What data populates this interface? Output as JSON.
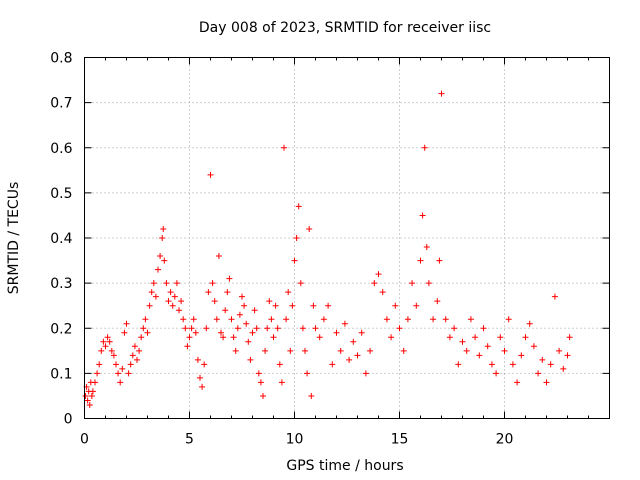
{
  "chart_data": {
    "type": "scatter",
    "title": "Day 008 of 2023, SRMTID for receiver iisc",
    "xlabel": "GPS time / hours",
    "ylabel": "SRMTID / TECUs",
    "xlim": [
      0,
      25
    ],
    "ylim": [
      0,
      0.8
    ],
    "xticks": [
      0,
      5,
      10,
      15,
      20
    ],
    "xtick_labels": [
      "0",
      "5",
      "10",
      "15",
      "20"
    ],
    "yticks": [
      0,
      0.1,
      0.2,
      0.3,
      0.4,
      0.5,
      0.6,
      0.7,
      0.8
    ],
    "ytick_labels": [
      "0",
      "0.1",
      "0.2",
      "0.3",
      "0.4",
      "0.5",
      "0.6",
      "0.7",
      "0.8"
    ],
    "grid": true,
    "marker": "+",
    "color": "#ff0000",
    "series": [
      {
        "name": "SRMTID",
        "points": [
          [
            0.05,
            0.05
          ],
          [
            0.1,
            0.07
          ],
          [
            0.15,
            0.04
          ],
          [
            0.2,
            0.06
          ],
          [
            0.25,
            0.03
          ],
          [
            0.3,
            0.08
          ],
          [
            0.35,
            0.05
          ],
          [
            0.4,
            0.06
          ],
          [
            0.5,
            0.08
          ],
          [
            0.6,
            0.1
          ],
          [
            0.7,
            0.12
          ],
          [
            0.8,
            0.15
          ],
          [
            0.9,
            0.17
          ],
          [
            1.0,
            0.16
          ],
          [
            1.1,
            0.18
          ],
          [
            1.2,
            0.17
          ],
          [
            1.3,
            0.15
          ],
          [
            1.4,
            0.14
          ],
          [
            1.5,
            0.12
          ],
          [
            1.6,
            0.1
          ],
          [
            1.7,
            0.08
          ],
          [
            1.8,
            0.11
          ],
          [
            1.9,
            0.19
          ],
          [
            2.0,
            0.21
          ],
          [
            2.1,
            0.1
          ],
          [
            2.2,
            0.12
          ],
          [
            2.3,
            0.14
          ],
          [
            2.4,
            0.16
          ],
          [
            2.5,
            0.13
          ],
          [
            2.6,
            0.15
          ],
          [
            2.7,
            0.18
          ],
          [
            2.8,
            0.2
          ],
          [
            2.9,
            0.22
          ],
          [
            3.0,
            0.19
          ],
          [
            3.1,
            0.25
          ],
          [
            3.2,
            0.28
          ],
          [
            3.3,
            0.3
          ],
          [
            3.4,
            0.27
          ],
          [
            3.5,
            0.33
          ],
          [
            3.6,
            0.36
          ],
          [
            3.7,
            0.4
          ],
          [
            3.75,
            0.42
          ],
          [
            3.8,
            0.35
          ],
          [
            3.9,
            0.3
          ],
          [
            4.0,
            0.26
          ],
          [
            4.1,
            0.28
          ],
          [
            4.2,
            0.25
          ],
          [
            4.3,
            0.27
          ],
          [
            4.4,
            0.3
          ],
          [
            4.5,
            0.24
          ],
          [
            4.6,
            0.26
          ],
          [
            4.7,
            0.22
          ],
          [
            4.8,
            0.2
          ],
          [
            4.9,
            0.16
          ],
          [
            5.0,
            0.18
          ],
          [
            5.1,
            0.2
          ],
          [
            5.2,
            0.22
          ],
          [
            5.3,
            0.19
          ],
          [
            5.4,
            0.13
          ],
          [
            5.5,
            0.09
          ],
          [
            5.6,
            0.07
          ],
          [
            5.7,
            0.12
          ],
          [
            5.8,
            0.2
          ],
          [
            5.9,
            0.28
          ],
          [
            6.0,
            0.54
          ],
          [
            6.1,
            0.3
          ],
          [
            6.2,
            0.26
          ],
          [
            6.3,
            0.22
          ],
          [
            6.4,
            0.36
          ],
          [
            6.5,
            0.19
          ],
          [
            6.6,
            0.18
          ],
          [
            6.7,
            0.24
          ],
          [
            6.8,
            0.28
          ],
          [
            6.9,
            0.31
          ],
          [
            7.0,
            0.22
          ],
          [
            7.1,
            0.18
          ],
          [
            7.2,
            0.15
          ],
          [
            7.3,
            0.2
          ],
          [
            7.4,
            0.23
          ],
          [
            7.5,
            0.27
          ],
          [
            7.6,
            0.25
          ],
          [
            7.7,
            0.21
          ],
          [
            7.8,
            0.17
          ],
          [
            7.9,
            0.13
          ],
          [
            8.0,
            0.19
          ],
          [
            8.1,
            0.24
          ],
          [
            8.2,
            0.2
          ],
          [
            8.3,
            0.1
          ],
          [
            8.4,
            0.08
          ],
          [
            8.5,
            0.05
          ],
          [
            8.6,
            0.15
          ],
          [
            8.7,
            0.2
          ],
          [
            8.8,
            0.26
          ],
          [
            8.9,
            0.22
          ],
          [
            9.0,
            0.18
          ],
          [
            9.1,
            0.25
          ],
          [
            9.2,
            0.2
          ],
          [
            9.3,
            0.12
          ],
          [
            9.4,
            0.08
          ],
          [
            9.5,
            0.6
          ],
          [
            9.6,
            0.22
          ],
          [
            9.7,
            0.28
          ],
          [
            9.8,
            0.15
          ],
          [
            9.9,
            0.25
          ],
          [
            10.0,
            0.35
          ],
          [
            10.1,
            0.4
          ],
          [
            10.2,
            0.47
          ],
          [
            10.3,
            0.3
          ],
          [
            10.4,
            0.2
          ],
          [
            10.5,
            0.15
          ],
          [
            10.6,
            0.1
          ],
          [
            10.7,
            0.42
          ],
          [
            10.8,
            0.05
          ],
          [
            10.9,
            0.25
          ],
          [
            11.0,
            0.2
          ],
          [
            11.2,
            0.18
          ],
          [
            11.4,
            0.22
          ],
          [
            11.6,
            0.25
          ],
          [
            11.8,
            0.12
          ],
          [
            12.0,
            0.19
          ],
          [
            12.2,
            0.15
          ],
          [
            12.4,
            0.21
          ],
          [
            12.6,
            0.13
          ],
          [
            12.8,
            0.17
          ],
          [
            13.0,
            0.14
          ],
          [
            13.2,
            0.19
          ],
          [
            13.4,
            0.1
          ],
          [
            13.6,
            0.15
          ],
          [
            13.8,
            0.3
          ],
          [
            14.0,
            0.32
          ],
          [
            14.2,
            0.28
          ],
          [
            14.4,
            0.22
          ],
          [
            14.6,
            0.18
          ],
          [
            14.8,
            0.25
          ],
          [
            15.0,
            0.2
          ],
          [
            15.2,
            0.15
          ],
          [
            15.4,
            0.22
          ],
          [
            15.6,
            0.3
          ],
          [
            15.8,
            0.25
          ],
          [
            16.0,
            0.35
          ],
          [
            16.1,
            0.45
          ],
          [
            16.2,
            0.6
          ],
          [
            16.3,
            0.38
          ],
          [
            16.4,
            0.3
          ],
          [
            16.6,
            0.22
          ],
          [
            16.8,
            0.26
          ],
          [
            16.9,
            0.35
          ],
          [
            17.0,
            0.72
          ],
          [
            17.2,
            0.22
          ],
          [
            17.4,
            0.18
          ],
          [
            17.6,
            0.2
          ],
          [
            17.8,
            0.12
          ],
          [
            18.0,
            0.17
          ],
          [
            18.2,
            0.15
          ],
          [
            18.4,
            0.22
          ],
          [
            18.6,
            0.18
          ],
          [
            18.8,
            0.14
          ],
          [
            19.0,
            0.2
          ],
          [
            19.2,
            0.16
          ],
          [
            19.4,
            0.12
          ],
          [
            19.6,
            0.1
          ],
          [
            19.8,
            0.18
          ],
          [
            20.0,
            0.15
          ],
          [
            20.2,
            0.22
          ],
          [
            20.4,
            0.12
          ],
          [
            20.6,
            0.08
          ],
          [
            20.8,
            0.14
          ],
          [
            21.0,
            0.18
          ],
          [
            21.2,
            0.21
          ],
          [
            21.4,
            0.16
          ],
          [
            21.6,
            0.1
          ],
          [
            21.8,
            0.13
          ],
          [
            22.0,
            0.08
          ],
          [
            22.2,
            0.12
          ],
          [
            22.4,
            0.27
          ],
          [
            22.6,
            0.15
          ],
          [
            22.8,
            0.11
          ],
          [
            23.0,
            0.14
          ],
          [
            23.1,
            0.18
          ]
        ]
      }
    ]
  }
}
